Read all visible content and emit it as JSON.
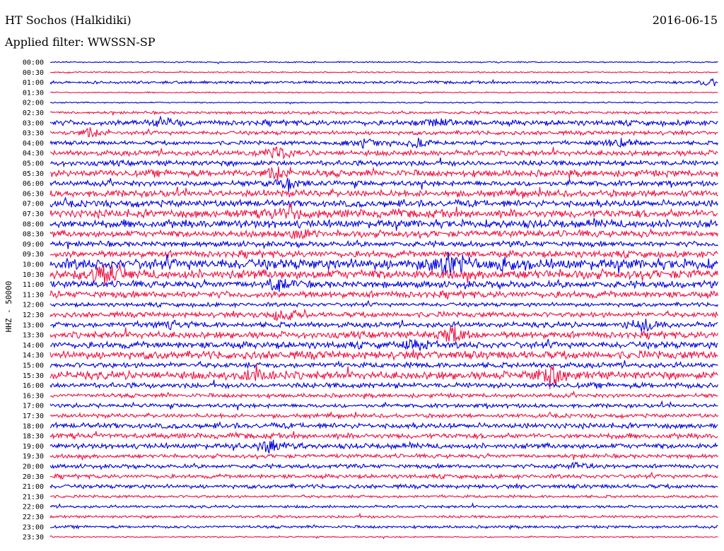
{
  "header": {
    "station": "HT Sochos (Halkidiki)",
    "date": "2016-06-15",
    "filter": "Applied filter: WWSSN-SP"
  },
  "chart_data": {
    "type": "line",
    "ylabel": "HHZ - 50000",
    "categories": [
      "00:00",
      "00:30",
      "01:00",
      "01:30",
      "02:00",
      "02:30",
      "03:00",
      "03:30",
      "04:00",
      "04:30",
      "05:00",
      "05:30",
      "06:00",
      "06:30",
      "07:00",
      "07:30",
      "08:00",
      "08:30",
      "09:00",
      "09:30",
      "10:00",
      "10:30",
      "11:00",
      "11:30",
      "12:00",
      "12:30",
      "13:00",
      "13:30",
      "14:00",
      "14:30",
      "15:00",
      "15:30",
      "16:00",
      "16:30",
      "17:00",
      "17:30",
      "18:00",
      "18:30",
      "19:00",
      "19:30",
      "20:00",
      "20:30",
      "21:00",
      "21:30",
      "22:00",
      "22:30",
      "23:00",
      "23:30"
    ],
    "colors": [
      "#0000dd",
      "#ee1144"
    ],
    "amplitude": [
      1,
      1,
      2,
      1,
      1,
      2,
      4,
      3,
      3,
      4,
      4,
      5,
      4,
      5,
      5,
      6,
      6,
      5,
      4,
      5,
      8,
      7,
      5,
      5,
      3,
      4,
      4,
      5,
      5,
      6,
      4,
      6,
      4,
      3,
      3,
      3,
      4,
      4,
      4,
      3,
      3,
      3,
      3,
      2,
      2,
      2,
      2,
      1
    ],
    "events": [
      {
        "row": 2,
        "x": 0.99,
        "amp": 6
      },
      {
        "row": 6,
        "x": 0.17,
        "amp": 9
      },
      {
        "row": 6,
        "x": 0.58,
        "amp": 7
      },
      {
        "row": 7,
        "x": 0.06,
        "amp": 6
      },
      {
        "row": 8,
        "x": 0.47,
        "amp": 8
      },
      {
        "row": 8,
        "x": 0.55,
        "amp": 8
      },
      {
        "row": 8,
        "x": 0.85,
        "amp": 7
      },
      {
        "row": 9,
        "x": 0.34,
        "amp": 9
      },
      {
        "row": 11,
        "x": 0.34,
        "amp": 8
      },
      {
        "row": 12,
        "x": 0.36,
        "amp": 7
      },
      {
        "row": 15,
        "x": 0.36,
        "amp": 9
      },
      {
        "row": 17,
        "x": 0.37,
        "amp": 8
      },
      {
        "row": 20,
        "x": 0.6,
        "amp": 18
      },
      {
        "row": 20,
        "x": 0.68,
        "amp": 9
      },
      {
        "row": 21,
        "x": 0.08,
        "amp": 18
      },
      {
        "row": 22,
        "x": 0.34,
        "amp": 8
      },
      {
        "row": 25,
        "x": 0.35,
        "amp": 9
      },
      {
        "row": 26,
        "x": 0.18,
        "amp": 6
      },
      {
        "row": 26,
        "x": 0.89,
        "amp": 11
      },
      {
        "row": 27,
        "x": 0.6,
        "amp": 11
      },
      {
        "row": 28,
        "x": 0.55,
        "amp": 7
      },
      {
        "row": 31,
        "x": 0.31,
        "amp": 8
      },
      {
        "row": 31,
        "x": 0.75,
        "amp": 15
      },
      {
        "row": 38,
        "x": 0.33,
        "amp": 9
      },
      {
        "row": 40,
        "x": 0.79,
        "amp": 7
      }
    ]
  }
}
